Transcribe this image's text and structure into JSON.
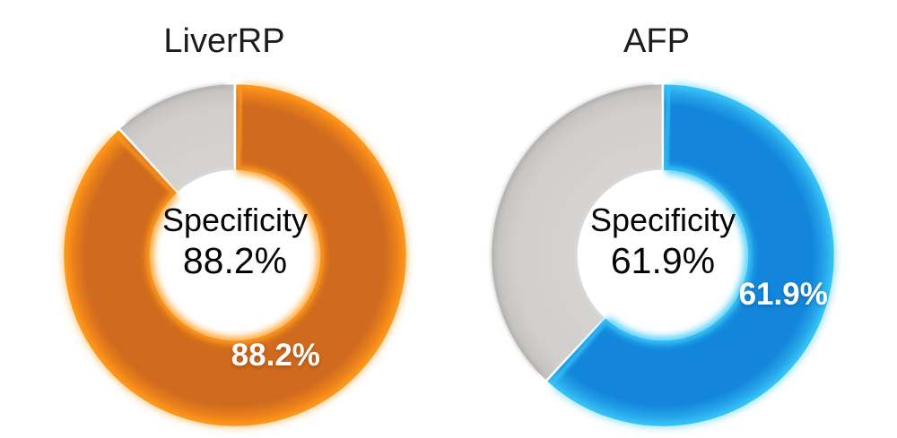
{
  "style": {
    "background": "#FFFFFF",
    "title_color": "#1C1C1C",
    "center_text_color": "#050505",
    "data_label_color": "#FFFFFF",
    "rest_color": "#D5D3D1",
    "rest_edge_color": "#ACAAA8",
    "slice_gap_color": "#FFFFFF"
  },
  "chart_data": [
    {
      "type": "pie",
      "variant": "donut",
      "title": "LiverRP",
      "center_text": [
        "Specificity",
        "88.2%"
      ],
      "categories": [
        "Specificity",
        "Remainder"
      ],
      "values": [
        88.2,
        11.8
      ],
      "unit": "%",
      "data_label": "88.2%",
      "legend": "none",
      "colors": {
        "accent": "#D06A1E",
        "accent_bright": "#FF9B1E",
        "accent_edge": "#F08519",
        "rest": "#D5D3D1"
      },
      "layout": {
        "start_angle_deg": 0,
        "clockwise": true,
        "hole_ratio": 0.49,
        "label_angle_deg": 158,
        "label_radius_frac": 0.63
      }
    },
    {
      "type": "pie",
      "variant": "donut",
      "title": "AFP",
      "center_text": [
        "Specificity",
        "61.9%"
      ],
      "categories": [
        "Specificity",
        "Remainder"
      ],
      "values": [
        61.9,
        38.1
      ],
      "unit": "%",
      "data_label": "61.9%",
      "legend": "none",
      "colors": {
        "accent": "#1386DB",
        "accent_bright": "#38C7F8",
        "accent_edge": "#2AAAEC",
        "rest": "#D5D3D1"
      },
      "layout": {
        "start_angle_deg": 0,
        "clockwise": true,
        "hole_ratio": 0.49,
        "label_angle_deg": 108,
        "label_radius_frac": 0.735
      }
    }
  ]
}
